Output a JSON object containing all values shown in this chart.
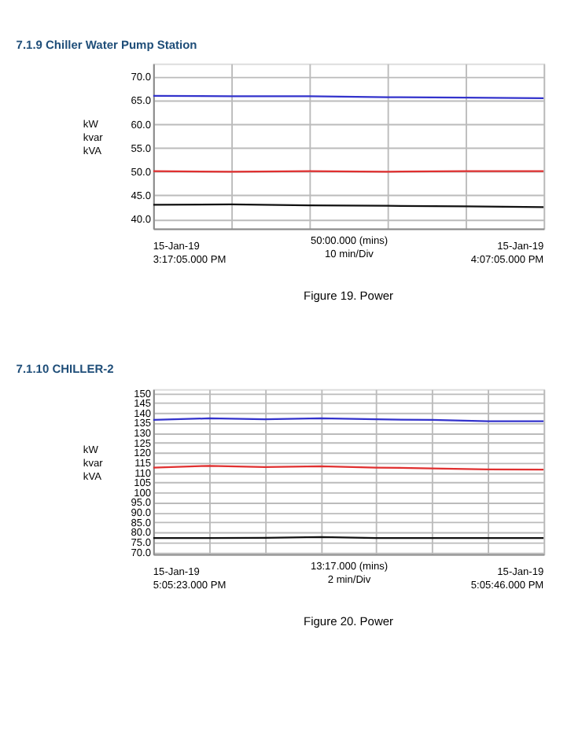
{
  "chart_data": [
    {
      "type": "line",
      "title": "7.1.9    Chiller Water Pump Station",
      "ylabel": "kW\nkvar\nkVA",
      "xlabel": "50:00.000 (mins)\n10 min/Div",
      "annotations": [
        "15-Jan-19\n3:17:05.000 PM",
        "15-Jan-19\n4:07:05.000 PM",
        "Figure 19. Power"
      ],
      "categories": [
        null,
        null,
        null,
        null,
        null,
        null
      ],
      "ylim": [
        38,
        72.8
      ],
      "yticks": [
        {
          "value": 40,
          "label": "40.0"
        },
        {
          "value": 45,
          "label": "45.0"
        },
        {
          "value": 50,
          "label": "50.0"
        },
        {
          "value": 55,
          "label": "55.0"
        },
        {
          "value": 60,
          "label": "60.0"
        },
        {
          "value": 65,
          "label": "65.0"
        },
        {
          "value": 70,
          "label": "70.0"
        }
      ],
      "grid": true,
      "legend": false,
      "marker": "none",
      "line_style": "solid",
      "tick_labels": "y",
      "series": [
        {
          "color": "#3333cc",
          "values": [
            66.0,
            65.9,
            65.9,
            65.7,
            65.6,
            65.5
          ]
        },
        {
          "color": "#e03030",
          "values": [
            50.1,
            50.0,
            50.1,
            50.0,
            50.1,
            50.1
          ]
        },
        {
          "color": "#111111",
          "values": [
            43.0,
            43.1,
            42.9,
            42.8,
            42.7,
            42.5
          ]
        }
      ]
    },
    {
      "type": "line",
      "title": "7.1.10  CHILLER-2",
      "ylabel": "kW\nkvar\nkVA",
      "xlabel": "13:17.000 (mins)\n2 min/Div",
      "annotations": [
        "15-Jan-19\n5:05:23.000 PM",
        "15-Jan-19\n5:05:46.000 PM",
        "Figure 20. Power"
      ],
      "categories": [
        null,
        null,
        null,
        null,
        null,
        null,
        null,
        null
      ],
      "ylim": [
        68.9,
        152
      ],
      "yticks": [
        {
          "value": 70,
          "label": "70.0"
        },
        {
          "value": 75,
          "label": "75.0"
        },
        {
          "value": 80,
          "label": "80.0"
        },
        {
          "value": 85,
          "label": "85.0"
        },
        {
          "value": 90,
          "label": "90.0"
        },
        {
          "value": 95,
          "label": "95.0"
        },
        100,
        105,
        110,
        115,
        120,
        125,
        130,
        135,
        140,
        145,
        150
      ],
      "grid": true,
      "legend": false,
      "marker": "none",
      "line_style": "solid",
      "tick_labels": "y",
      "series": [
        {
          "color": "#3333cc",
          "values": [
            136.5,
            137.3,
            136.8,
            137.3,
            136.8,
            136.5,
            135.8,
            135.8
          ]
        },
        {
          "color": "#e03030",
          "values": [
            112.5,
            113.4,
            112.8,
            113.2,
            112.5,
            112.1,
            111.6,
            111.5
          ]
        },
        {
          "color": "#111111",
          "values": [
            77.0,
            77.0,
            77.1,
            77.5,
            77.0,
            77.0,
            77.0,
            77.0
          ]
        }
      ]
    }
  ]
}
